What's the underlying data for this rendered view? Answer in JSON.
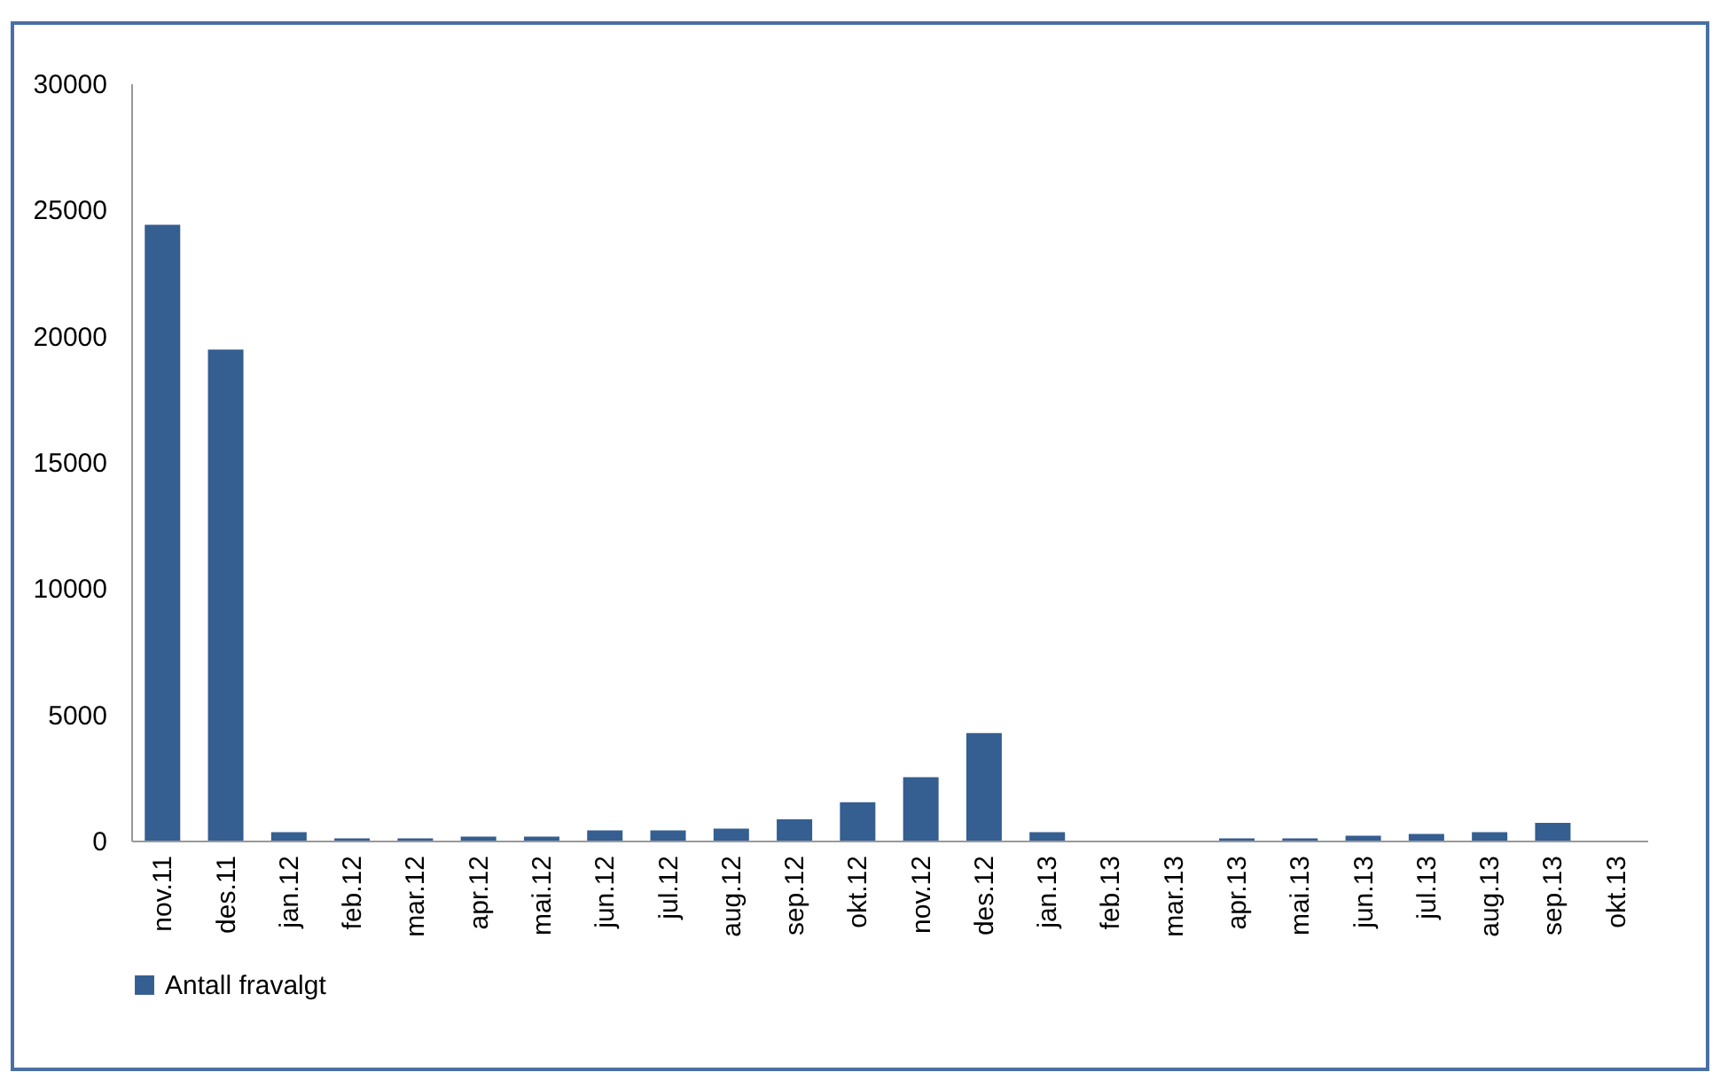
{
  "chart_data": {
    "type": "bar",
    "categories": [
      "nov.11",
      "des.11",
      "jan.12",
      "feb.12",
      "mar.12",
      "apr.12",
      "mai.12",
      "jun.12",
      "jul.12",
      "aug.12",
      "sep.12",
      "okt.12",
      "nov.12",
      "des.12",
      "jan.13",
      "feb.13",
      "mar.13",
      "apr.13",
      "mai.13",
      "jun.13",
      "jul.13",
      "aug.13",
      "sep.13",
      "okt.13"
    ],
    "series": [
      {
        "name": "Antall fravalgt",
        "color": "#355e91",
        "values": [
          24400,
          19450,
          330,
          90,
          90,
          160,
          160,
          400,
          400,
          470,
          840,
          1520,
          2510,
          4260,
          330,
          0,
          0,
          90,
          90,
          190,
          260,
          330,
          700,
          0
        ]
      }
    ],
    "ylim": [
      0,
      30000
    ],
    "yticks": [
      0,
      5000,
      10000,
      15000,
      20000,
      25000,
      30000
    ],
    "grid": false,
    "legend": "bottom"
  }
}
